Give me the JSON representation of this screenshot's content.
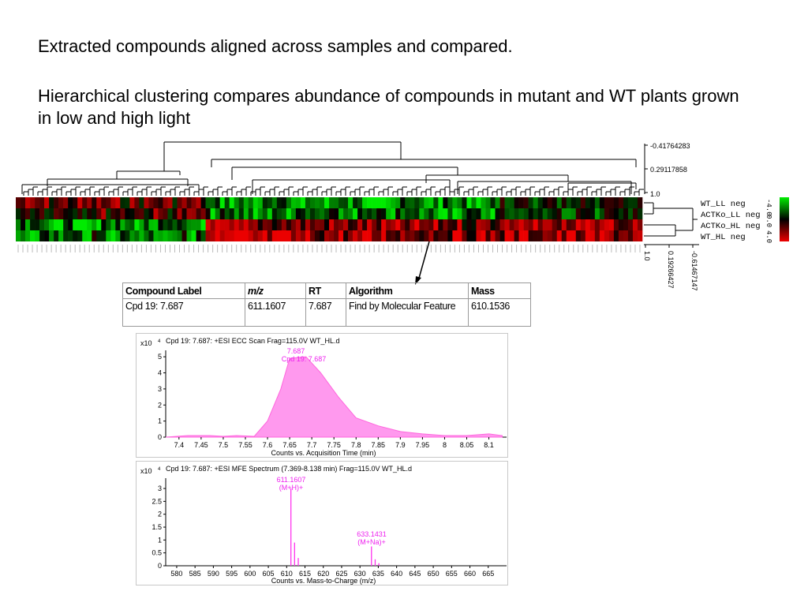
{
  "intro": "Extracted compounds aligned across samples and compared.",
  "description": "Hierarchical clustering compares abundance of compounds in mutant and WT plants grown in low and high light",
  "heatmap": {
    "row_labels": [
      "WT_LL neg",
      "ACTKo_LL neg",
      "ACTKo_HL neg",
      "WT_HL neg"
    ],
    "top_scale": [
      "-0.41764283",
      "0.29117858",
      "1.0"
    ],
    "right_scale": [
      "1.0",
      "0.19266427",
      "-0.61467147"
    ],
    "color_scale": [
      "-4.0",
      "0.0",
      "4.0"
    ],
    "colors": {
      "high": "#00ee00",
      "mid": "#000000",
      "low": "#ee0000"
    }
  },
  "compound_table": {
    "headers": [
      "Compound Label",
      "m/z",
      "RT",
      "Algorithm",
      "Mass"
    ],
    "row": [
      "Cpd 19: 7.687",
      "611.1607",
      "7.687",
      "Find by Molecular Feature",
      "610.1536"
    ]
  },
  "chromatogram": {
    "title": "Cpd 19: 7.687: +ESI ECC Scan Frag=115.0V WT_HL.d",
    "multiplier": "x10",
    "exponent": "4",
    "peak_label": "7.687",
    "peak_sublabel": "Cpd 19: 7.687",
    "xlabel": "Counts vs. Acquisition Time (min)",
    "chart_data": {
      "type": "area",
      "x": [
        7.37,
        7.42,
        7.47,
        7.5,
        7.53,
        7.57,
        7.6,
        7.63,
        7.65,
        7.687,
        7.72,
        7.76,
        7.8,
        7.85,
        7.9,
        7.95,
        8.0,
        8.05,
        8.1,
        8.13
      ],
      "y": [
        0.0,
        0.1,
        0.1,
        0.05,
        0.1,
        0.05,
        1.0,
        3.0,
        4.9,
        5.0,
        4.0,
        2.5,
        1.2,
        0.7,
        0.35,
        0.2,
        0.1,
        0.1,
        0.2,
        0.1
      ],
      "xticks": [
        "7.4",
        "7.45",
        "7.5",
        "7.55",
        "7.6",
        "7.65",
        "7.7",
        "7.75",
        "7.8",
        "7.85",
        "7.9",
        "7.95",
        "8",
        "8.05",
        "8.1"
      ],
      "yticks": [
        "0",
        "1",
        "2",
        "3",
        "4",
        "5"
      ],
      "xlim": [
        7.37,
        8.14
      ],
      "ylim": [
        0,
        5.4
      ],
      "color": "#ff99ee"
    }
  },
  "spectrum": {
    "title": "Cpd 19: 7.687: +ESI MFE Spectrum (7.369-8.138 min) Frag=115.0V WT_HL.d",
    "multiplier": "x10",
    "exponent": "4",
    "peak1_label": "611.1607",
    "peak1_sublabel": "(M+H)+",
    "peak2_label": "633.1431",
    "peak2_sublabel": "(M+Na)+",
    "xlabel": "Counts vs. Mass-to-Charge (m/z)",
    "chart_data": {
      "type": "bar",
      "x": [
        611.16,
        612.16,
        613.17,
        633.14,
        634.15,
        635.15
      ],
      "y": [
        3.0,
        0.9,
        0.3,
        0.75,
        0.25,
        0.1
      ],
      "xticks": [
        "580",
        "585",
        "590",
        "595",
        "600",
        "605",
        "610",
        "615",
        "620",
        "625",
        "630",
        "635",
        "640",
        "645",
        "650",
        "655",
        "660",
        "665"
      ],
      "yticks": [
        "0",
        "0.5",
        "1",
        "1.5",
        "2",
        "2.5",
        "3"
      ],
      "xlim": [
        577,
        670
      ],
      "ylim": [
        0,
        3.4
      ],
      "color": "#ff33ee"
    }
  }
}
